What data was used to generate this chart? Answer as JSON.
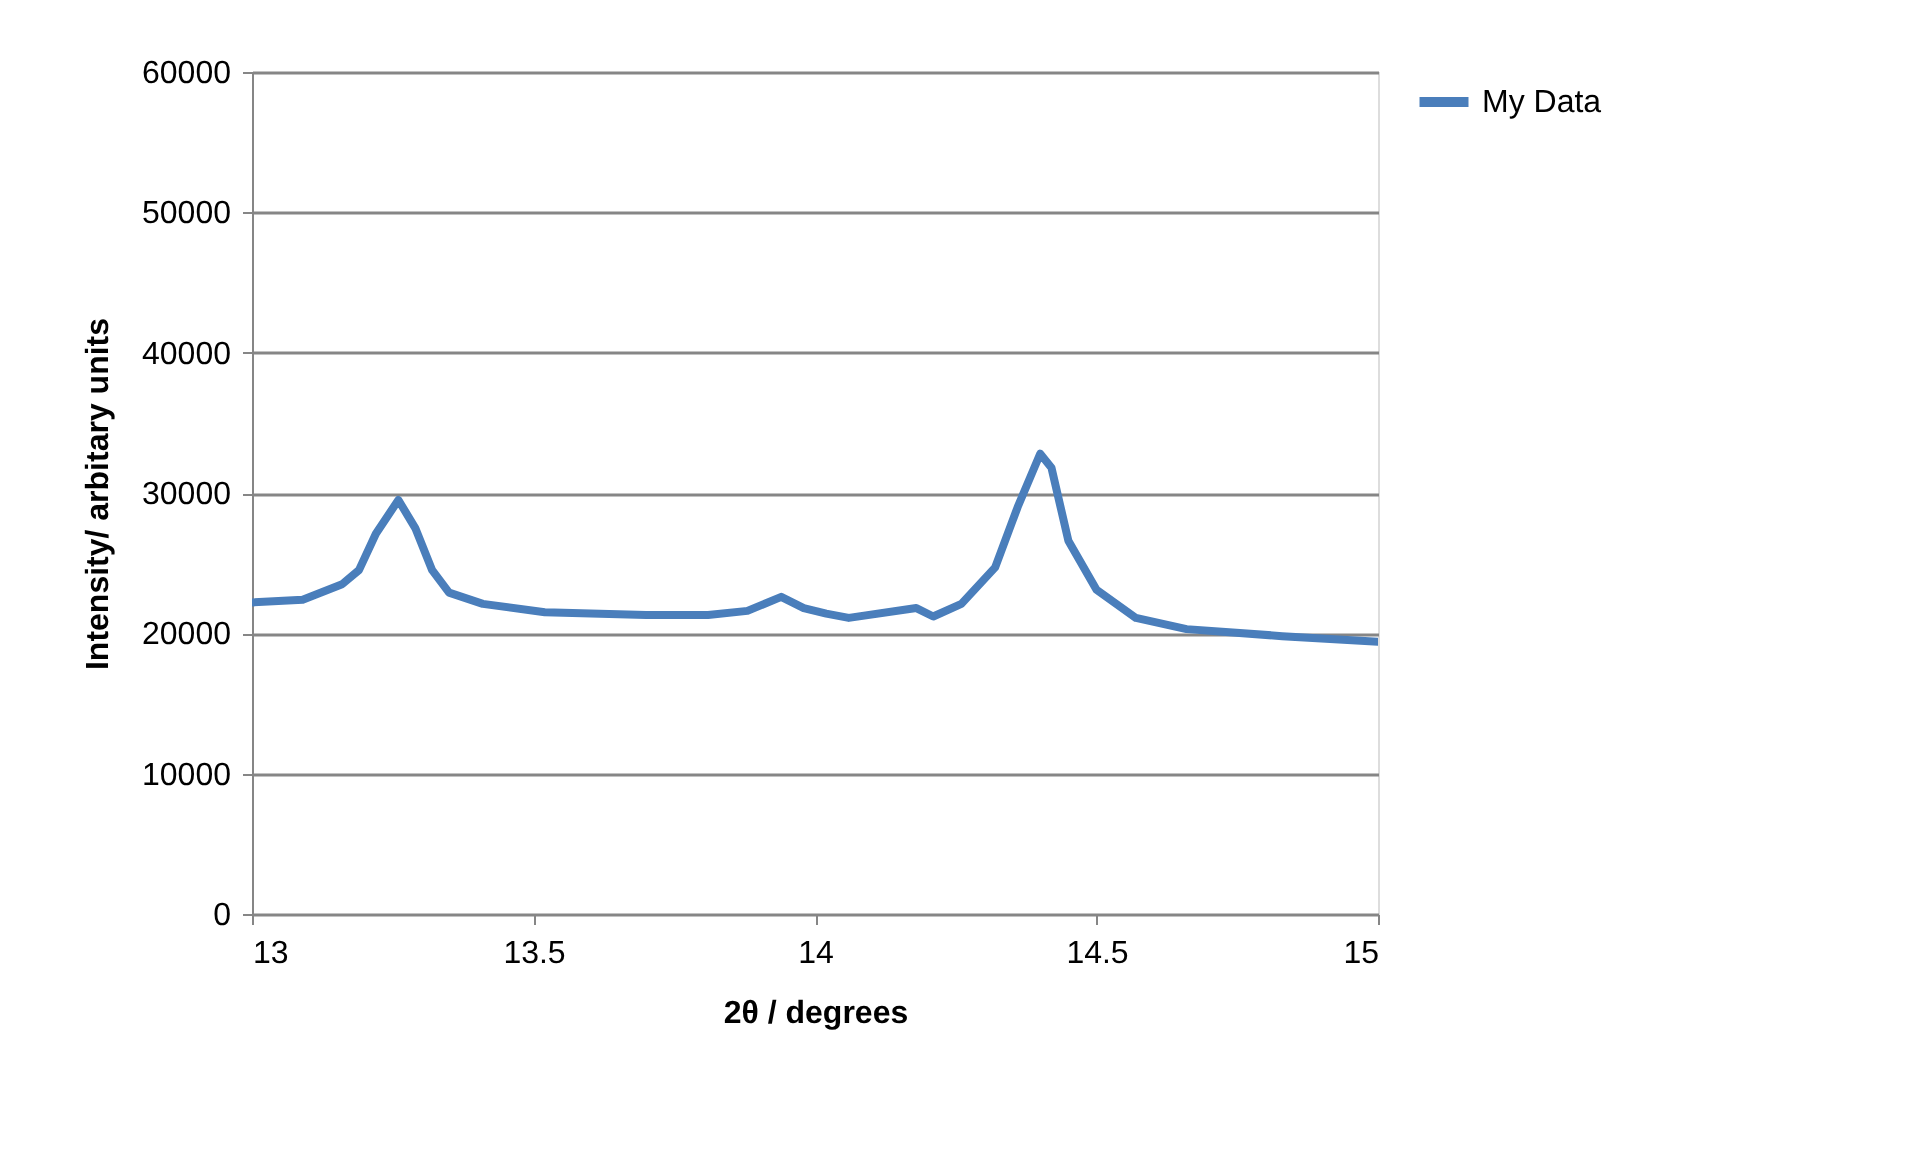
{
  "chart_data": {
    "type": "line",
    "xlabel": "2θ / degrees",
    "ylabel": "Intensity/ arbitary units",
    "xlim": [
      13,
      15
    ],
    "xticks": [
      13,
      13.5,
      14,
      14.5,
      15
    ],
    "ylim": [
      0,
      60000
    ],
    "yticks": [
      0,
      10000,
      20000,
      30000,
      40000,
      50000,
      60000
    ],
    "grid": "y",
    "legend": "right",
    "marker": "none",
    "line_style": "solid",
    "x": [
      13.0,
      13.09,
      13.16,
      13.19,
      13.22,
      13.26,
      13.29,
      13.32,
      13.35,
      13.41,
      13.52,
      13.7,
      13.81,
      13.88,
      13.94,
      13.98,
      14.02,
      14.06,
      14.18,
      14.21,
      14.26,
      14.32,
      14.36,
      14.4,
      14.42,
      14.45,
      14.5,
      14.57,
      14.66,
      14.83,
      15.0
    ],
    "series": [
      {
        "name": "My Data",
        "color": "#4a7ebb",
        "values": [
          22200,
          22400,
          23500,
          24500,
          27100,
          29500,
          27500,
          24500,
          22900,
          22100,
          21500,
          21300,
          21300,
          21600,
          22600,
          21800,
          21400,
          21100,
          21800,
          21200,
          22100,
          24700,
          29000,
          32800,
          31800,
          26600,
          23100,
          21100,
          20300,
          19800,
          19400
        ]
      }
    ]
  }
}
